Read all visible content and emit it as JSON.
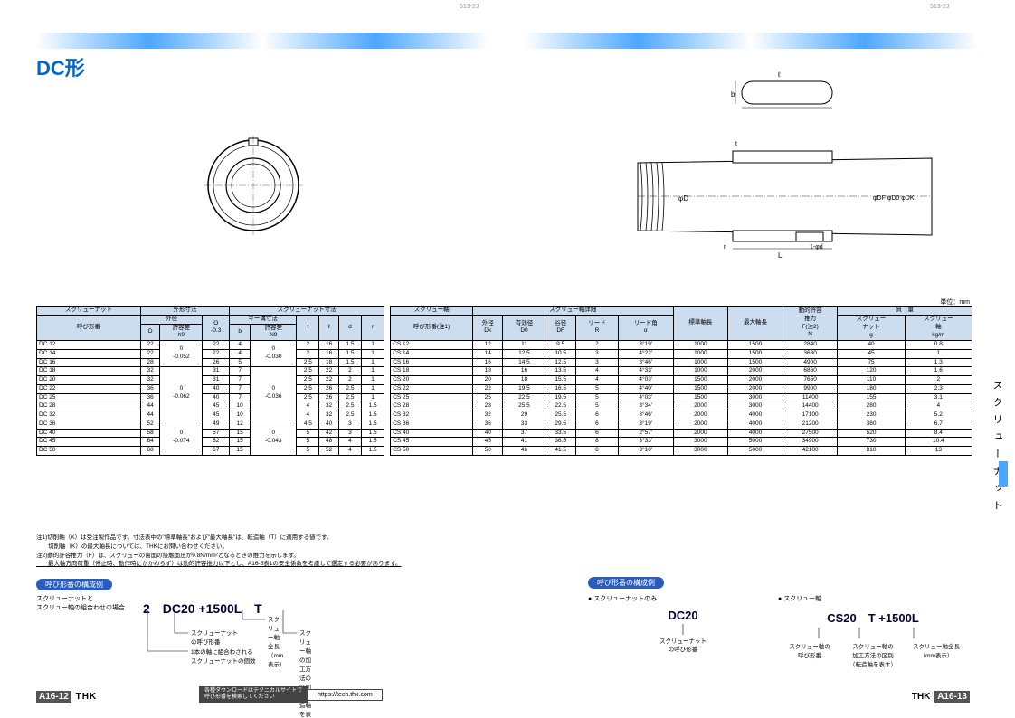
{
  "pageCode": "513-2J",
  "title": "DC形",
  "sideText": "スクリューナット",
  "unit": "単位：mm",
  "thk": "THK",
  "pageLeft": "A16-12",
  "pageRight": "A16-13",
  "dlText1": "各種ダウンロードはテクニカルサイトで",
  "dlText2": "呼び形番を検索してください",
  "url": "https://tech.thk.com",
  "hdr": {
    "nutLine": "スクリューナット",
    "nutOuter": "外形寸法",
    "nutDim": "スクリューナット寸法",
    "od": "外径",
    "L": "L",
    "key": "キー溝寸法",
    "model": "呼び形番",
    "D": "D",
    "tolh9": "許容差\nh9",
    "O": "O\n-0.3",
    "b": "b",
    "tolN9": "許容差\nN9",
    "t": "t",
    "l": "ℓ",
    "d": "d",
    "r": "r",
    "shaft": "スクリュー軸",
    "shaftDet": "スクリュー軸詳細",
    "stdLen": "標準軸長",
    "maxLen": "最大軸長",
    "thrust": "動的許容\n推力\nF(注2)\nN",
    "mass": "質　量",
    "model2": "呼び形番(注1)",
    "Dk": "外径\nDk",
    "D0": "有効径\nD0",
    "DF": "谷径\nDF",
    "R": "リード\nR",
    "ang": "リード角\nα",
    "nut": "スクリュー\nナット\ng",
    "shaftM": "スクリュー\n軸\nkg/m"
  },
  "tolCellA": "0\n-0.052",
  "tolCellB": "0\n-0.062",
  "tolCellC": "0\n-0.074",
  "tolCellD": "0\n-0.030",
  "tolCellE": "0\n-0.036",
  "tolCellF": "0\n-0.043",
  "rows": [
    [
      "DC 12",
      "22",
      0,
      "22",
      "4",
      0,
      "2",
      "16",
      "1.5",
      "1",
      "CS 12",
      "12",
      "11",
      "9.5",
      "2",
      "3°19′",
      "1000",
      "1500",
      "2840",
      "40",
      "0.8"
    ],
    [
      "DC 14",
      "22",
      0,
      "22",
      "4",
      0,
      "2",
      "16",
      "1.5",
      "1",
      "CS 14",
      "14",
      "12.5",
      "10.5",
      "3",
      "4°22′",
      "1000",
      "1500",
      "3630",
      "45",
      "1"
    ],
    [
      "DC 16",
      "28",
      0,
      "26",
      "5",
      0,
      "2.5",
      "18",
      "1.5",
      "1",
      "CS 16",
      "16",
      "14.5",
      "12.5",
      "3",
      "3°46′",
      "1000",
      "1500",
      "4900",
      "75",
      "1.3"
    ],
    [
      "DC 18",
      "32",
      1,
      "31",
      "7",
      1,
      "2.5",
      "22",
      "2",
      "1",
      "CS 18",
      "18",
      "16",
      "13.5",
      "4",
      "4°33′",
      "1000",
      "2000",
      "6860",
      "120",
      "1.6"
    ],
    [
      "DC 20",
      "32",
      1,
      "31",
      "7",
      1,
      "2.5",
      "22",
      "2",
      "1",
      "CS 20",
      "20",
      "18",
      "15.5",
      "4",
      "4°03′",
      "1500",
      "2000",
      "7650",
      "110",
      "2"
    ],
    [
      "DC 22",
      "36",
      1,
      "40",
      "7",
      1,
      "2.5",
      "26",
      "2.5",
      "1",
      "CS 22",
      "22",
      "19.5",
      "16.5",
      "5",
      "4°40′",
      "1500",
      "2000",
      "9900",
      "180",
      "2.3"
    ],
    [
      "DC 25",
      "36",
      1,
      "40",
      "7",
      1,
      "2.5",
      "26",
      "2.5",
      "1",
      "CS 25",
      "25",
      "22.5",
      "19.5",
      "5",
      "4°03′",
      "1500",
      "3000",
      "11400",
      "155",
      "3.1"
    ],
    [
      "DC 28",
      "44",
      1,
      "45",
      "10",
      1,
      "4",
      "32",
      "2.5",
      "1.5",
      "CS 28",
      "28",
      "25.5",
      "22.5",
      "5",
      "3°34′",
      "2000",
      "3000",
      "14400",
      "280",
      "4"
    ],
    [
      "DC 32",
      "44",
      1,
      "45",
      "10",
      1,
      "4",
      "32",
      "2.5",
      "1.5",
      "CS 32",
      "32",
      "29",
      "25.5",
      "6",
      "3°46′",
      "2000",
      "4000",
      "17100",
      "230",
      "5.2"
    ],
    [
      "DC 36",
      "52",
      2,
      "49",
      "12",
      2,
      "4.5",
      "40",
      "3",
      "1.5",
      "CS 36",
      "36",
      "33",
      "29.5",
      "6",
      "3°19′",
      "2000",
      "4000",
      "21200",
      "380",
      "6.7"
    ],
    [
      "DC 40",
      "58",
      2,
      "57",
      "15",
      2,
      "5",
      "42",
      "3",
      "1.5",
      "CS 40",
      "40",
      "37",
      "33.5",
      "6",
      "2°57′",
      "2000",
      "4000",
      "27500",
      "520",
      "8.4"
    ],
    [
      "DC 45",
      "64",
      2,
      "62",
      "15",
      2,
      "5",
      "48",
      "4",
      "1.5",
      "CS 45",
      "45",
      "41",
      "36.5",
      "8",
      "3°33′",
      "3000",
      "5000",
      "34900",
      "730",
      "10.4"
    ],
    [
      "DC 50",
      "68",
      2,
      "67",
      "15",
      2,
      "5",
      "52",
      "4",
      "1.5",
      "CS 50",
      "50",
      "46",
      "41.5",
      "8",
      "3°10′",
      "3000",
      "5000",
      "42100",
      "810",
      "13"
    ]
  ],
  "n1": "注1)切削軸（K）は受注製作品です。寸法表中の\"標準軸長\"および\"最大軸長\"は、転造軸（T）に適用する値です。",
  "n1b": "　　切削軸（K）の最大軸長については、THKにお問い合わせください。",
  "n2": "注2)動的許容推力（F）は、スクリューの歯面の接触面圧が9.8N/mm²となるときの推力を示します。",
  "n2b": "　　最大軸方向荷重（停止時、動作時にかかわらず）は動的許容推力以下とし、A16-5表1の安全係数を考慮して選定する必要があります。",
  "compL": {
    "badge": "呼び形番の構成例",
    "top": "スクリューナットと\nスクリュー軸の組合わせの場合",
    "big": "2　DC20 +1500L　T",
    "a1": "スクリュー軸全長\n（mm表示）",
    "a2": "スクリューナット\nの呼び形番",
    "a3": "スクリュー軸の加工方法の区別\n（転造軸を表す）",
    "a4": "1本の軸に組合わされる\nスクリューナットの個数"
  },
  "compR": {
    "badge": "呼び形番の構成例",
    "h1": "スクリューナットのみ",
    "h2": "スクリュー軸",
    "big1": "DC20",
    "big2": "CS20　T +1500L",
    "a1": "スクリューナット\nの呼び形番",
    "a2": "スクリュー軸の\n呼び形番",
    "a3": "スクリュー軸の\n加工方法の区別\n（転造軸を表す）",
    "a4": "スクリュー軸全長\n（mm表示）"
  }
}
